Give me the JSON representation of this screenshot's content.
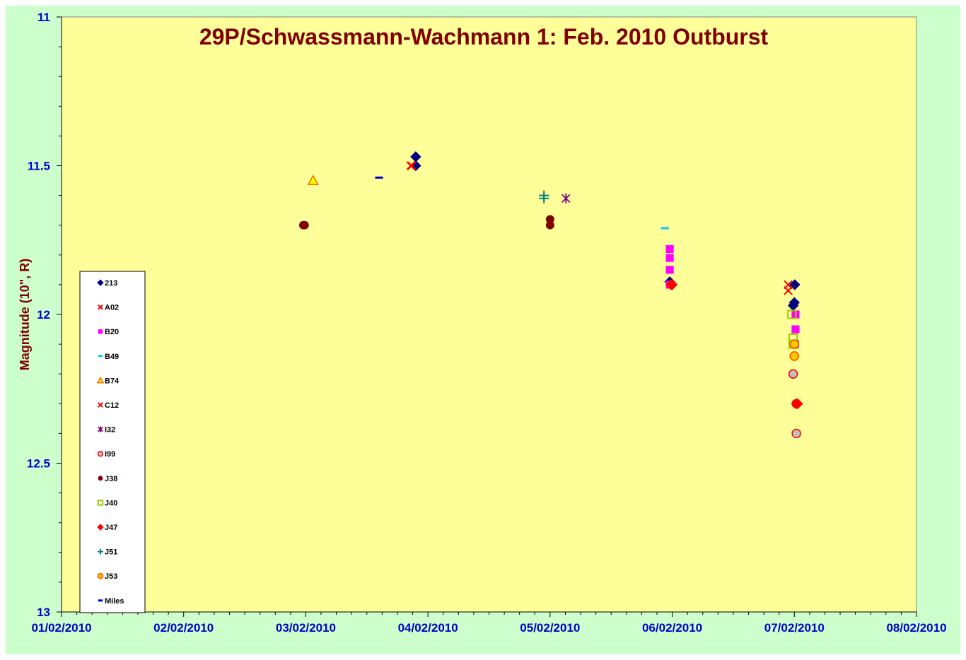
{
  "chart_data": {
    "type": "scatter",
    "title": "29P/Schwassmann-Wachmann 1: Feb. 2010 Outburst",
    "ylabel": "Magnitude (10\", R)",
    "xlabel": "",
    "x_ticks": [
      "01/02/2010",
      "02/02/2010",
      "03/02/2010",
      "04/02/2010",
      "05/02/2010",
      "06/02/2010",
      "07/02/2010",
      "08/02/2010"
    ],
    "y_ticks": [
      "11",
      "11.5",
      "12",
      "12.5",
      "13"
    ],
    "xlim": [
      "01/02/2010",
      "08/02/2010"
    ],
    "ylim": [
      11,
      13
    ],
    "y_inverted": true,
    "grid": false,
    "legend_position": "bottom-left",
    "plot_background": "#ffff99",
    "outer_background": "#ccffcc",
    "series": [
      {
        "name": "213",
        "marker": "diamond",
        "color": "#000080",
        "points": [
          {
            "x": "03/02/2010 21:36",
            "y": 11.47
          },
          {
            "x": "03/02/2010 21:36",
            "y": 11.5
          },
          {
            "x": "05/02/2010 23:31",
            "y": 11.89
          },
          {
            "x": "06/02/2010 23:46",
            "y": 11.97
          },
          {
            "x": "06/02/2010 23:60",
            "y": 11.96
          },
          {
            "x": "07/02/2010 00:05",
            "y": 11.9
          }
        ]
      },
      {
        "name": "A02",
        "marker": "x",
        "color": "#ff0000",
        "points": [
          {
            "x": "03/02/2010 20:38",
            "y": 11.5
          },
          {
            "x": "03/02/2010 20:48",
            "y": 11.5
          }
        ]
      },
      {
        "name": "B20",
        "marker": "square",
        "color": "#ff00ff",
        "points": [
          {
            "x": "05/02/2010 23:31",
            "y": 11.78
          },
          {
            "x": "05/02/2010 23:31",
            "y": 11.81
          },
          {
            "x": "05/02/2010 23:31",
            "y": 11.85
          },
          {
            "x": "05/02/2010 23:31",
            "y": 11.9
          },
          {
            "x": "07/02/2010 00:14",
            "y": 12.0
          },
          {
            "x": "07/02/2010 00:14",
            "y": 12.05
          },
          {
            "x": "07/02/2010 00:09",
            "y": 12.1
          }
        ]
      },
      {
        "name": "B49",
        "marker": "dash",
        "color": "#00ccff",
        "points": [
          {
            "x": "05/02/2010 22:34",
            "y": 11.71
          }
        ]
      },
      {
        "name": "B74",
        "marker": "triangle",
        "color": "#ff6600",
        "points": [
          {
            "x": "03/02/2010 01:26",
            "y": 11.55
          }
        ]
      },
      {
        "name": "C12",
        "marker": "x",
        "color": "#ff0000",
        "points": [
          {
            "x": "06/02/2010 22:48",
            "y": 11.9
          },
          {
            "x": "06/02/2010 22:48",
            "y": 11.92
          }
        ]
      },
      {
        "name": "I32",
        "marker": "star",
        "color": "#800080",
        "points": [
          {
            "x": "05/02/2010 03:07",
            "y": 11.61
          }
        ]
      },
      {
        "name": "I99",
        "marker": "circle-open",
        "color": "#ff0000",
        "points": [
          {
            "x": "06/02/2010 23:46",
            "y": 12.2
          },
          {
            "x": "07/02/2010 00:24",
            "y": 12.3
          },
          {
            "x": "07/02/2010 00:24",
            "y": 12.4
          }
        ]
      },
      {
        "name": "J38",
        "marker": "circle",
        "color": "#800000",
        "points": [
          {
            "x": "02/02/2010 23:46",
            "y": 11.7
          },
          {
            "x": "02/02/2010 23:31",
            "y": 11.7
          },
          {
            "x": "05/02/2010 00:00",
            "y": 11.68
          },
          {
            "x": "05/02/2010 00:00",
            "y": 11.7
          }
        ]
      },
      {
        "name": "J40",
        "marker": "square-open",
        "color": "#99cc00",
        "points": [
          {
            "x": "06/02/2010 23:31",
            "y": 12.0
          },
          {
            "x": "06/02/2010 23:46",
            "y": 12.08
          },
          {
            "x": "06/02/2010 23:46",
            "y": 12.1
          }
        ]
      },
      {
        "name": "J47",
        "marker": "diamond",
        "color": "#ff0000",
        "points": [
          {
            "x": "05/02/2010 23:46",
            "y": 11.9
          },
          {
            "x": "05/02/2010 23:60",
            "y": 11.9
          },
          {
            "x": "07/02/2010 00:38",
            "y": 12.3
          },
          {
            "x": "07/02/2010 00:24",
            "y": 12.3
          }
        ]
      },
      {
        "name": "J51",
        "marker": "plus",
        "color": "#008080",
        "points": [
          {
            "x": "04/02/2010 22:48",
            "y": 11.61
          },
          {
            "x": "04/02/2010 22:48",
            "y": 11.6
          }
        ]
      },
      {
        "name": "J53",
        "marker": "circle-dot",
        "color": "#ff6600",
        "points": [
          {
            "x": "07/02/2010 00:00",
            "y": 12.1
          },
          {
            "x": "07/02/2010 00:00",
            "y": 12.14
          }
        ]
      },
      {
        "name": "Miles",
        "marker": "dash",
        "color": "#0000cc",
        "points": [
          {
            "x": "03/02/2010 14:24",
            "y": 11.54
          }
        ]
      }
    ]
  }
}
